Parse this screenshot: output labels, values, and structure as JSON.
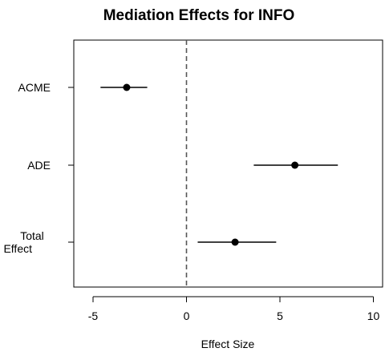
{
  "chart_data": {
    "type": "scatter",
    "title": "Mediation Effects for INFO",
    "xlabel": "Effect Size",
    "ylabel": "",
    "xlim": [
      -6,
      10.3
    ],
    "xticks": [
      -5,
      0,
      5,
      10
    ],
    "xtick_labels": [
      "-5",
      "0",
      "5",
      "10"
    ],
    "reference_line": {
      "x": 0,
      "style": "dashed"
    },
    "grid": false,
    "points": [
      {
        "label": "ACME",
        "label_lines": [
          "ACME"
        ],
        "estimate": -3.2,
        "lower": -4.6,
        "upper": -2.1
      },
      {
        "label": "ADE",
        "label_lines": [
          "ADE"
        ],
        "estimate": 5.8,
        "lower": 3.6,
        "upper": 8.1
      },
      {
        "label": "Total Effect",
        "label_lines": [
          "Total",
          "Effect"
        ],
        "estimate": 2.6,
        "lower": 0.6,
        "upper": 4.8
      }
    ]
  }
}
